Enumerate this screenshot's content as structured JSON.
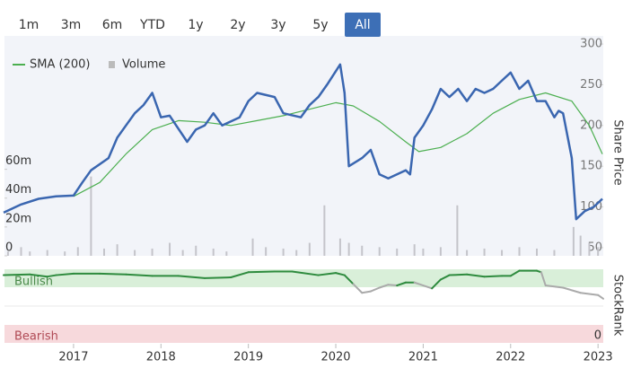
{
  "range_buttons": {
    "labels": [
      "1m",
      "3m",
      "6m",
      "YTD",
      "1y",
      "2y",
      "3y",
      "5y",
      "All"
    ],
    "active": 8
  },
  "chart_data": {
    "type": "line",
    "xlim": [
      2016.21,
      2023.06
    ],
    "xticks": [
      2017,
      2018,
      2019,
      2020,
      2021,
      2022,
      2023
    ],
    "ylim": [
      40,
      310
    ],
    "yticks": [
      50,
      100,
      150,
      200,
      250,
      300
    ],
    "y_label": "Share Price",
    "y2lim": [
      0,
      152500000
    ],
    "y2ticks": [
      0,
      {
        "value": 20000000,
        "label": "20m"
      },
      {
        "value": 40000000,
        "label": "40m"
      },
      {
        "value": 60000000,
        "label": "60m"
      }
    ],
    "series": [
      {
        "name": "Price",
        "color": "#3a66b0",
        "x": [
          2016.2,
          2016.4,
          2016.6,
          2016.8,
          2017.0,
          2017.1,
          2017.2,
          2017.4,
          2017.5,
          2017.6,
          2017.7,
          2017.8,
          2017.9,
          2018.0,
          2018.1,
          2018.3,
          2018.4,
          2018.5,
          2018.6,
          2018.7,
          2018.9,
          2019.0,
          2019.1,
          2019.3,
          2019.4,
          2019.6,
          2019.7,
          2019.8,
          2019.9,
          2020.05,
          2020.1,
          2020.15,
          2020.3,
          2020.4,
          2020.5,
          2020.6,
          2020.7,
          2020.8,
          2020.85,
          2020.9,
          2021.0,
          2021.1,
          2021.2,
          2021.3,
          2021.4,
          2021.5,
          2021.6,
          2021.7,
          2021.8,
          2021.9,
          2022.0,
          2022.1,
          2022.2,
          2022.3,
          2022.4,
          2022.5,
          2022.55,
          2022.6,
          2022.7,
          2022.75,
          2022.85,
          2022.95,
          2023.05
        ],
        "values": [
          93,
          103,
          110,
          113,
          114,
          130,
          145,
          160,
          185,
          200,
          215,
          225,
          240,
          210,
          212,
          180,
          195,
          200,
          215,
          200,
          210,
          230,
          240,
          235,
          215,
          210,
          225,
          235,
          250,
          275,
          240,
          150,
          160,
          170,
          140,
          135,
          140,
          145,
          140,
          185,
          200,
          220,
          245,
          235,
          245,
          230,
          245,
          240,
          245,
          255,
          265,
          245,
          255,
          230,
          230,
          210,
          218,
          215,
          160,
          85,
          95,
          100,
          110
        ]
      },
      {
        "name": "SMA (200)",
        "color": "#4caf50",
        "x": [
          2017.0,
          2017.3,
          2017.6,
          2017.9,
          2018.2,
          2018.5,
          2018.8,
          2019.1,
          2019.4,
          2019.7,
          2020.0,
          2020.2,
          2020.5,
          2020.8,
          2020.95,
          2021.2,
          2021.5,
          2021.8,
          2022.1,
          2022.4,
          2022.7,
          2022.9,
          2023.05
        ],
        "values": [
          113,
          130,
          165,
          195,
          206,
          204,
          200,
          206,
          212,
          220,
          228,
          224,
          205,
          180,
          168,
          173,
          190,
          215,
          232,
          240,
          230,
          200,
          165
        ]
      },
      {
        "name": "Volume",
        "color": "#c4c4ca",
        "axis": "y2",
        "x": [
          2016.25,
          2016.4,
          2016.5,
          2016.7,
          2016.9,
          2017.05,
          2017.2,
          2017.35,
          2017.5,
          2017.7,
          2017.9,
          2018.1,
          2018.25,
          2018.4,
          2018.6,
          2018.75,
          2019.05,
          2019.2,
          2019.4,
          2019.55,
          2019.7,
          2019.87,
          2020.05,
          2020.15,
          2020.3,
          2020.5,
          2020.7,
          2020.9,
          2021.0,
          2021.2,
          2021.39,
          2021.5,
          2021.7,
          2021.9,
          2022.1,
          2022.3,
          2022.5,
          2022.72,
          2022.8,
          2022.9,
          2023.0
        ],
        "values": [
          3000000,
          6000000,
          3000000,
          4000000,
          3000000,
          6000000,
          55000000,
          5000000,
          8000000,
          4000000,
          5000000,
          9000000,
          4000000,
          7000000,
          5000000,
          3000000,
          12000000,
          6000000,
          5000000,
          4000000,
          9000000,
          35000000,
          12000000,
          9000000,
          7000000,
          6000000,
          5000000,
          8000000,
          5000000,
          6000000,
          35000000,
          4000000,
          5000000,
          4000000,
          6000000,
          5000000,
          4000000,
          20000000,
          14000000,
          9000000,
          6000000
        ]
      }
    ],
    "stockrank": {
      "label": "StockRank",
      "bullish": "Bullish",
      "bearish": "Bearish",
      "ylim": [
        0,
        100
      ],
      "yticks": [
        0
      ],
      "x": [
        2016.2,
        2016.5,
        2016.7,
        2016.8,
        2017.0,
        2017.3,
        2017.6,
        2017.9,
        2018.2,
        2018.5,
        2018.8,
        2019.0,
        2019.3,
        2019.5,
        2019.8,
        2020.0,
        2020.1,
        2020.2,
        2020.3,
        2020.4,
        2020.5,
        2020.6,
        2020.7,
        2020.8,
        2020.9,
        2021.0,
        2021.1,
        2021.2,
        2021.3,
        2021.5,
        2021.7,
        2021.9,
        2022.0,
        2022.1,
        2022.3,
        2022.35,
        2022.4,
        2022.6,
        2022.8,
        2023.0,
        2023.06
      ],
      "values": [
        92,
        93,
        90,
        92,
        94,
        94,
        93,
        91,
        91,
        88,
        89,
        96,
        97,
        97,
        92,
        95,
        92,
        80,
        68,
        70,
        75,
        79,
        78,
        82,
        82,
        78,
        74,
        86,
        92,
        93,
        90,
        91,
        91,
        98,
        98,
        96,
        78,
        75,
        68,
        65,
        60
      ],
      "colors": [
        "#2e8b3e",
        "#2e8b3e",
        "#2e8b3e",
        "#2e8b3e",
        "#2e8b3e",
        "#2e8b3e",
        "#2e8b3e",
        "#2e8b3e",
        "#2e8b3e",
        "#2e8b3e",
        "#2e8b3e",
        "#2e8b3e",
        "#2e8b3e",
        "#2e8b3e",
        "#2e8b3e",
        "#2e8b3e",
        "#2e8b3e",
        "#2e8b3e",
        "#aaaaaa",
        "#aaaaaa",
        "#aaaaaa",
        "#aaaaaa",
        "#aaaaaa",
        "#2e8b3e",
        "#2e8b3e",
        "#aaaaaa",
        "#aaaaaa",
        "#2e8b3e",
        "#2e8b3e",
        "#2e8b3e",
        "#2e8b3e",
        "#2e8b3e",
        "#2e8b3e",
        "#2e8b3e",
        "#2e8b3e",
        "#2e8b3e",
        "#aaaaaa",
        "#aaaaaa",
        "#aaaaaa",
        "#aaaaaa",
        "#aaaaaa"
      ]
    }
  }
}
